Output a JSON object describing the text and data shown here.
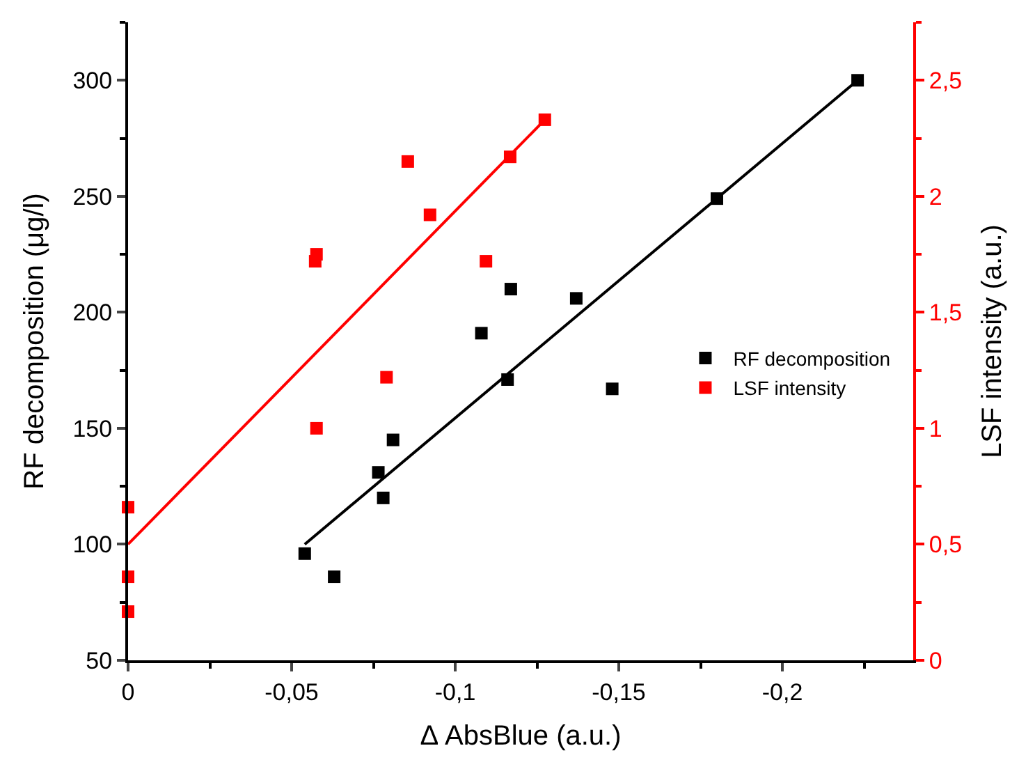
{
  "chart_data": {
    "type": "scatter",
    "xlabel": "Δ AbsBlue (a.u.)",
    "ylabel": "RF decomposition (μg/l)",
    "y2label": "LSF intensity (a.u.)",
    "xlim": [
      0,
      -0.24
    ],
    "xticks": [
      0,
      {
        "value": -0.05,
        "label": "-0,05"
      },
      {
        "value": -0.1,
        "label": "-0,1"
      },
      {
        "value": -0.15,
        "label": "-0,15"
      },
      {
        "value": -0.2,
        "label": "-0,2"
      }
    ],
    "ylim": [
      50,
      325
    ],
    "yticks": [
      50,
      100,
      150,
      200,
      250,
      300
    ],
    "y2lim": [
      0,
      2.75
    ],
    "y2ticks": [
      0,
      {
        "value": 0.5,
        "label": "0,5"
      },
      1,
      {
        "value": 1.5,
        "label": "1,5"
      },
      2,
      {
        "value": 2.5,
        "label": "2,5"
      }
    ],
    "grid": false,
    "legend": "right",
    "marker": "square",
    "series": [
      {
        "name": "RF decomposition",
        "color": "#000000",
        "x": [
          -0.054,
          -0.063,
          -0.0765,
          -0.078,
          -0.081,
          -0.108,
          -0.117,
          -0.116,
          -0.137,
          -0.148,
          -0.18,
          -0.223
        ],
        "values": [
          96,
          86,
          131,
          120,
          145,
          191,
          210,
          171,
          206,
          167,
          249,
          300
        ]
      },
      {
        "name": "LSF intensity",
        "color": "#ff0000",
        "axis": "y2",
        "x": [
          0,
          0,
          0,
          -0.0576,
          -0.0576,
          -0.0572,
          -0.0855,
          -0.0923,
          -0.079,
          -0.1094,
          -0.1168,
          -0.1274
        ],
        "values": [
          0.66,
          0.36,
          0.21,
          1.0,
          1.75,
          1.72,
          2.15,
          1.92,
          1.22,
          1.72,
          2.17,
          2.33
        ]
      },
      {
        "color": "#000000",
        "type": "line",
        "marker": "none",
        "x": [
          -0.054,
          -0.223
        ],
        "values": [
          100,
          300
        ]
      },
      {
        "color": "#ff0000",
        "type": "line",
        "marker": "none",
        "axis": "y2",
        "x": [
          0,
          -0.1274
        ],
        "values": [
          0.5,
          2.33
        ]
      }
    ]
  }
}
